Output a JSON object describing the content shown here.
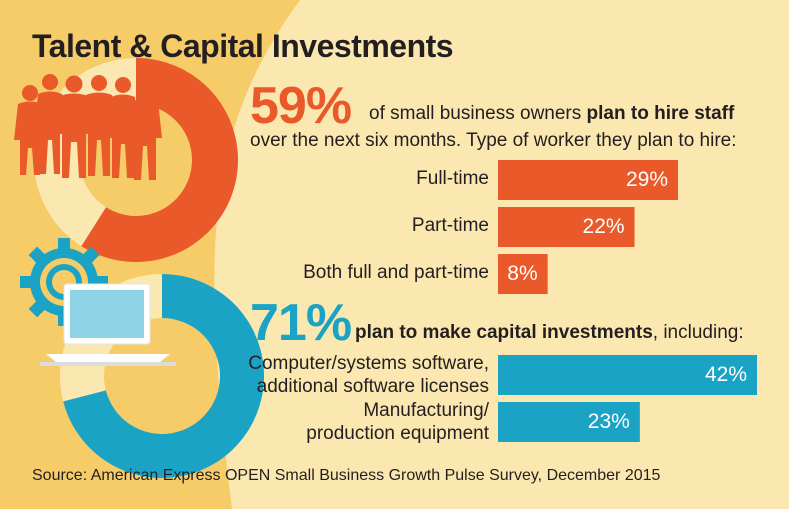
{
  "title": "Talent & Capital Investments",
  "colors": {
    "orange": "#e9592a",
    "blue": "#1aa3c4",
    "background": "#f6cc68",
    "panel": "#fbe7b0"
  },
  "icons": [
    "people-silhouette-icon",
    "gear-icon",
    "computer-monitor-icon"
  ],
  "hire": {
    "pct": "59%",
    "text_pre": "of small business owners ",
    "text_bold": "plan to hire staff",
    "text_line2": "over the next six months. Type of worker they plan to hire:"
  },
  "capital": {
    "pct": "71%",
    "text_bold": "plan to make capital investments",
    "text_post": ", including:"
  },
  "source": "Source: American Express OPEN Small Business Growth Pulse Survey, December 2015",
  "chart_data": [
    {
      "type": "pie",
      "values": [
        59,
        41
      ]
    },
    {
      "type": "bar",
      "categories": [
        "Full-time",
        "Part-time",
        "Both full and part-time"
      ],
      "values": [
        29,
        22,
        8
      ],
      "value_labels": [
        "29%",
        "22%",
        "8%"
      ]
    },
    {
      "type": "pie",
      "values": [
        71,
        29
      ]
    },
    {
      "type": "bar",
      "categories": [
        [
          "Computer/systems software,",
          "additional software licenses"
        ],
        [
          "Manufacturing/",
          "production equipment"
        ]
      ],
      "values": [
        42,
        23
      ],
      "value_labels": [
        "42%",
        "23%"
      ]
    }
  ]
}
